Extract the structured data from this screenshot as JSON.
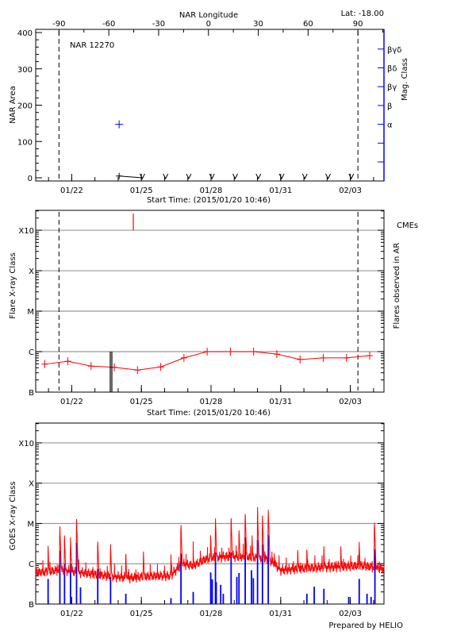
{
  "chart_data": [
    {
      "type": "scatter",
      "title": "NAR 12270",
      "top_right_label": "Lat: -18.00",
      "top_axis_label": "NAR Longitude",
      "top_axis_ticks": [
        "-90",
        "-60",
        "-30",
        "0",
        "30",
        "60",
        "90"
      ],
      "longitude_limb_crossings": {
        "-90": "2015-01-21T10:50",
        "90": "2015-02-03T07:50"
      },
      "xlabel": "Start Time: (2015/01/20 10:46)",
      "xlim": [
        "2015-01-20T10:46",
        "2015-02-04T10:46"
      ],
      "x_tick_labels": [
        {
          "label": "01/22",
          "date": "2015-01-22T00:00"
        },
        {
          "label": "01/25",
          "date": "2015-01-25T00:00"
        },
        {
          "label": "01/28",
          "date": "2015-01-28T00:00"
        },
        {
          "label": "01/31",
          "date": "2015-01-31T00:00"
        },
        {
          "label": "02/03",
          "date": "2015-02-03T00:00"
        }
      ],
      "ylabel": "NAR Area",
      "ylim": [
        -9,
        409
      ],
      "y_ticks": [
        "0",
        "100",
        "200",
        "300",
        "400"
      ],
      "right_axis_label": "Mag. Class",
      "right_axis_ticks": [
        "",
        "",
        "α",
        "β",
        "βγ",
        "βδ",
        "βγδ"
      ],
      "right_axis_color": "#0000ff",
      "area_points": [
        {
          "date": "2015-01-24T01:00",
          "value": 5,
          "marker": "plus"
        },
        {
          "date": "2015-01-25T01:00",
          "value": 0,
          "marker": "down-arrow"
        },
        {
          "date": "2015-01-26T01:00",
          "value": 0,
          "marker": "down-arrow"
        },
        {
          "date": "2015-01-27T01:00",
          "value": 0,
          "marker": "down-arrow"
        },
        {
          "date": "2015-01-28T01:00",
          "value": 0,
          "marker": "down-arrow"
        },
        {
          "date": "2015-01-29T01:00",
          "value": 0,
          "marker": "down-arrow"
        },
        {
          "date": "2015-01-30T01:00",
          "value": 0,
          "marker": "down-arrow"
        },
        {
          "date": "2015-01-31T01:00",
          "value": 0,
          "marker": "down-arrow"
        },
        {
          "date": "2015-02-01T01:00",
          "value": 0,
          "marker": "down-arrow"
        },
        {
          "date": "2015-02-02T01:00",
          "value": 0,
          "marker": "down-arrow"
        },
        {
          "date": "2015-02-03T01:00",
          "value": 0,
          "marker": "down-arrow"
        }
      ],
      "mag_class_points": [
        {
          "date": "2015-01-24T01:00",
          "class": "α"
        }
      ]
    },
    {
      "type": "line",
      "xlabel": "Start Time: (2015/01/20 10:46)",
      "ylabel": "Flare X-ray Class",
      "right_axis_label": "Flares observed in AR",
      "cme_label": "CMEs",
      "y_scale": "log",
      "ylim": [
        1e-07,
        0.0031
      ],
      "y_ticks": [
        {
          "label": "B",
          "value": 1e-07
        },
        {
          "label": "C",
          "value": 1e-06
        },
        {
          "label": "M",
          "value": 1e-05
        },
        {
          "label": "X",
          "value": 0.0001
        },
        {
          "label": "X10",
          "value": 0.001
        }
      ],
      "grid": true,
      "colors": {
        "series": "#ff0000",
        "cme": "#ff0000",
        "flares": "#000000",
        "grid": "#999999"
      },
      "series_points": [
        [
          "2015-01-20T20:00",
          4.9e-07
        ],
        [
          "2015-01-21T20:00",
          5.8e-07
        ],
        [
          "2015-01-22T20:00",
          4.4e-07
        ],
        [
          "2015-01-23T20:00",
          4.1e-07
        ],
        [
          "2015-01-24T20:00",
          3.5e-07
        ],
        [
          "2015-01-25T20:00",
          4.2e-07
        ],
        [
          "2015-01-26T20:00",
          7e-07
        ],
        [
          "2015-01-27T20:00",
          1e-06
        ],
        [
          "2015-01-28T20:00",
          1e-06
        ],
        [
          "2015-01-29T20:00",
          1e-06
        ],
        [
          "2015-01-30T20:00",
          8.7e-07
        ],
        [
          "2015-01-31T20:00",
          6.4e-07
        ],
        [
          "2015-02-01T20:00",
          7e-07
        ],
        [
          "2015-02-02T20:00",
          7e-07
        ],
        [
          "2015-02-03T20:00",
          8e-07
        ]
      ],
      "flare_events": [
        [
          "2015-01-23T15:50",
          1e-06
        ],
        [
          "2015-01-23T17:30",
          1e-06
        ]
      ],
      "cme_events": [
        "2015-01-24T15:40"
      ]
    },
    {
      "type": "line",
      "ylabel": "GOES X-ray Class",
      "y_scale": "log",
      "ylim": [
        1e-07,
        0.0031
      ],
      "grid": true,
      "colors": {
        "long_channel": "#ff0000",
        "short_channel": "#0000ff"
      },
      "long_channel_baseline": [
        [
          "2015-01-20T12:00",
          6e-07
        ],
        [
          "2015-01-21T12:00",
          7e-07
        ],
        [
          "2015-01-22T12:00",
          6e-07
        ],
        [
          "2015-01-23T12:00",
          5e-07
        ],
        [
          "2015-01-24T12:00",
          4.5e-07
        ],
        [
          "2015-01-25T12:00",
          5e-07
        ],
        [
          "2015-01-26T06:00",
          5e-07
        ],
        [
          "2015-01-26T18:00",
          1e-06
        ],
        [
          "2015-01-27T06:00",
          9e-07
        ],
        [
          "2015-01-27T18:00",
          1.3e-06
        ],
        [
          "2015-01-28T12:00",
          1.5e-06
        ],
        [
          "2015-01-29T12:00",
          1.5e-06
        ],
        [
          "2015-01-30T12:00",
          1.3e-06
        ],
        [
          "2015-01-31T00:00",
          7e-07
        ],
        [
          "2015-02-01T12:00",
          8e-07
        ],
        [
          "2015-02-02T12:00",
          8.5e-07
        ],
        [
          "2015-02-03T12:00",
          9e-07
        ],
        [
          "2015-02-04T10:00",
          7.5e-07
        ]
      ],
      "long_channel_peaks": [
        [
          "2015-01-20T23:30",
          3.1e-06
        ],
        [
          "2015-01-21T11:40",
          1e-05
        ],
        [
          "2015-01-21T16:30",
          5.6e-06
        ],
        [
          "2015-01-21T22:40",
          5.3e-06
        ],
        [
          "2015-01-22T04:55",
          1.4e-05
        ],
        [
          "2015-01-23T02:50",
          4.4e-06
        ],
        [
          "2015-01-23T16:05",
          3.5e-06
        ],
        [
          "2015-01-24T07:50",
          2.2e-06
        ],
        [
          "2015-01-25T02:05",
          2.3e-06
        ],
        [
          "2015-01-26T06:30",
          1.9e-06
        ],
        [
          "2015-01-26T16:50",
          1.14e-05
        ],
        [
          "2015-01-27T05:30",
          2.5e-06
        ],
        [
          "2015-01-27T23:35",
          5.8e-06
        ],
        [
          "2015-01-28T04:30",
          1.5e-05
        ],
        [
          "2015-01-28T20:40",
          1.6e-05
        ],
        [
          "2015-01-29T04:50",
          8.4e-06
        ],
        [
          "2015-01-29T11:15",
          2.1e-05
        ],
        [
          "2015-01-29T18:20",
          5.3e-06
        ],
        [
          "2015-01-30T00:00",
          2.1e-05
        ],
        [
          "2015-01-30T05:05",
          1.8e-05
        ],
        [
          "2015-01-30T11:05",
          2.5e-05
        ],
        [
          "2015-01-30T17:15",
          2.2e-06
        ],
        [
          "2015-01-31T17:35",
          2.5e-06
        ],
        [
          "2015-02-01T03:00",
          2.8e-06
        ],
        [
          "2015-02-01T20:35",
          3.1e-06
        ],
        [
          "2015-02-02T14:10",
          2.7e-06
        ],
        [
          "2015-02-03T09:05",
          4e-06
        ],
        [
          "2015-02-04T00:50",
          1.3e-05
        ]
      ],
      "short_channel_bars": [
        [
          "2015-01-20T23:30",
          4.2e-07
        ],
        [
          "2015-01-21T11:40",
          2.1e-06
        ],
        [
          "2015-01-21T16:30",
          1e-06
        ],
        [
          "2015-01-21T22:40",
          1e-06
        ],
        [
          "2015-01-22T04:55",
          3.3e-06
        ],
        [
          "2015-01-22T09:00",
          2.6e-07
        ],
        [
          "2015-01-23T02:50",
          7.4e-07
        ],
        [
          "2015-01-23T16:05",
          4.7e-07
        ],
        [
          "2015-01-24T07:50",
          1.8e-07
        ],
        [
          "2015-01-26T06:30",
          1.4e-07
        ],
        [
          "2015-01-26T16:50",
          1.8e-06
        ],
        [
          "2015-01-27T05:30",
          2e-07
        ],
        [
          "2015-01-27T23:35",
          6.1e-07
        ],
        [
          "2015-01-28T01:10",
          4.1e-07
        ],
        [
          "2015-01-28T04:30",
          1.9e-06
        ],
        [
          "2015-01-28T05:20",
          3.5e-07
        ],
        [
          "2015-01-28T09:55",
          3e-07
        ],
        [
          "2015-01-28T12:35",
          1.8e-07
        ],
        [
          "2015-01-28T20:40",
          1.9e-06
        ],
        [
          "2015-01-29T02:35",
          4.7e-07
        ],
        [
          "2015-01-29T04:50",
          5.9e-07
        ],
        [
          "2015-01-29T11:15",
          4.5e-06
        ],
        [
          "2015-01-29T17:45",
          6.9e-07
        ],
        [
          "2015-01-29T19:40",
          4.4e-07
        ],
        [
          "2015-01-30T00:00",
          3.9e-06
        ],
        [
          "2015-01-30T05:05",
          3e-06
        ],
        [
          "2015-01-30T11:05",
          5.2e-06
        ],
        [
          "2015-02-01T03:00",
          1.8e-07
        ],
        [
          "2015-02-01T10:35",
          2.7e-07
        ],
        [
          "2015-02-01T20:35",
          2.4e-07
        ],
        [
          "2015-02-02T22:15",
          1.5e-07
        ],
        [
          "2015-02-03T09:05",
          4.2e-07
        ],
        [
          "2015-02-03T17:10",
          1.8e-07
        ],
        [
          "2015-02-03T21:20",
          1.5e-07
        ],
        [
          "2015-02-04T01:20",
          2.3e-06
        ]
      ],
      "footer": "Prepared by HELIO"
    }
  ]
}
